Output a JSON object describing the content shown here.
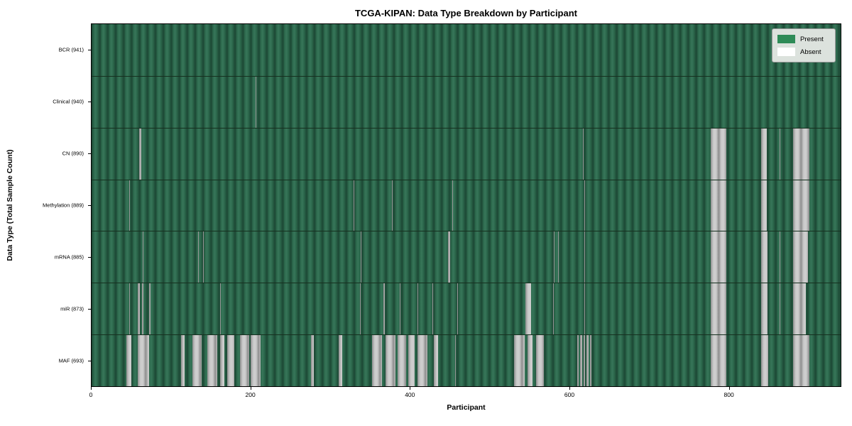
{
  "figure": {
    "title": "TCGA-KIPAN: Data Type Breakdown by Participant",
    "x_axis_label": "Participant",
    "y_axis_label": "Data Type (Total Sample Count)"
  },
  "colors": {
    "present": "#2e8b57",
    "present_fill_dark": "#1e4b37",
    "present_fill_mid": "#2c684c",
    "present_fill_light": "#377659",
    "absent": "#ffffff",
    "absent_fill_light": "#c8c8c8",
    "absent_fill_dark": "#8e8e8e",
    "legend_background": "#dce2dd"
  },
  "legend": {
    "items": [
      {
        "label": "Present",
        "color": "#2e8b57"
      },
      {
        "label": "Absent",
        "color": "#ffffff"
      }
    ]
  },
  "chart_data": {
    "type": "heatmap",
    "title": "TCGA-KIPAN: Data Type Breakdown by Participant",
    "xlabel": "Participant",
    "ylabel": "Data Type (Total Sample Count)",
    "x_range": [
      0,
      941
    ],
    "x_ticks": [
      0,
      200,
      400,
      600,
      800
    ],
    "legend_entries": [
      "Present",
      "Absent"
    ],
    "legend_position": "upper right",
    "grid": false,
    "rows": [
      {
        "label": "BCR (941)",
        "name": "BCR",
        "total": 941,
        "absent_ranges": []
      },
      {
        "label": "Clinical (940)",
        "name": "Clinical",
        "total": 940,
        "absent_ranges": [
          [
            206,
            206
          ]
        ]
      },
      {
        "label": "CN (890)",
        "name": "CN",
        "total": 890,
        "absent_ranges": [
          [
            60,
            61
          ],
          [
            617,
            617
          ],
          [
            778,
            796
          ],
          [
            841,
            847
          ],
          [
            864,
            864
          ],
          [
            881,
            901
          ]
        ]
      },
      {
        "label": "Methylation (889)",
        "name": "Methylation",
        "total": 889,
        "absent_ranges": [
          [
            47,
            47
          ],
          [
            329,
            329
          ],
          [
            377,
            377
          ],
          [
            453,
            453
          ],
          [
            619,
            619
          ],
          [
            778,
            796
          ],
          [
            841,
            847
          ],
          [
            881,
            901
          ]
        ]
      },
      {
        "label": "mRNA (885)",
        "name": "mRNA",
        "total": 885,
        "absent_ranges": [
          [
            64,
            64
          ],
          [
            134,
            134
          ],
          [
            140,
            140
          ],
          [
            338,
            338
          ],
          [
            448,
            449
          ],
          [
            581,
            581
          ],
          [
            586,
            586
          ],
          [
            619,
            619
          ],
          [
            778,
            796
          ],
          [
            841,
            848
          ],
          [
            864,
            864
          ],
          [
            881,
            899
          ]
        ]
      },
      {
        "label": "miR (873)",
        "name": "miR",
        "total": 873,
        "absent_ranges": [
          [
            47,
            47
          ],
          [
            58,
            60
          ],
          [
            63,
            64
          ],
          [
            72,
            73
          ],
          [
            161,
            161
          ],
          [
            337,
            337
          ],
          [
            367,
            367
          ],
          [
            387,
            387
          ],
          [
            409,
            409
          ],
          [
            428,
            428
          ],
          [
            459,
            459
          ],
          [
            545,
            551
          ],
          [
            580,
            580
          ],
          [
            619,
            619
          ],
          [
            778,
            796
          ],
          [
            841,
            848
          ],
          [
            864,
            864
          ],
          [
            881,
            896
          ]
        ]
      },
      {
        "label": "MAF (693)",
        "name": "MAF",
        "total": 693,
        "absent_ranges": [
          [
            44,
            49
          ],
          [
            58,
            71
          ],
          [
            112,
            116
          ],
          [
            127,
            137
          ],
          [
            145,
            157
          ],
          [
            161,
            166
          ],
          [
            170,
            178
          ],
          [
            186,
            197
          ],
          [
            200,
            211
          ],
          [
            276,
            278
          ],
          [
            310,
            314
          ],
          [
            352,
            364
          ],
          [
            369,
            381
          ],
          [
            384,
            394
          ],
          [
            398,
            405
          ],
          [
            409,
            421
          ],
          [
            430,
            434
          ],
          [
            457,
            457
          ],
          [
            531,
            543
          ],
          [
            548,
            553
          ],
          [
            558,
            567
          ],
          [
            610,
            611
          ],
          [
            614,
            615
          ],
          [
            618,
            619
          ],
          [
            622,
            623
          ],
          [
            626,
            627
          ],
          [
            778,
            796
          ],
          [
            841,
            849
          ],
          [
            881,
            901
          ]
        ]
      }
    ]
  }
}
